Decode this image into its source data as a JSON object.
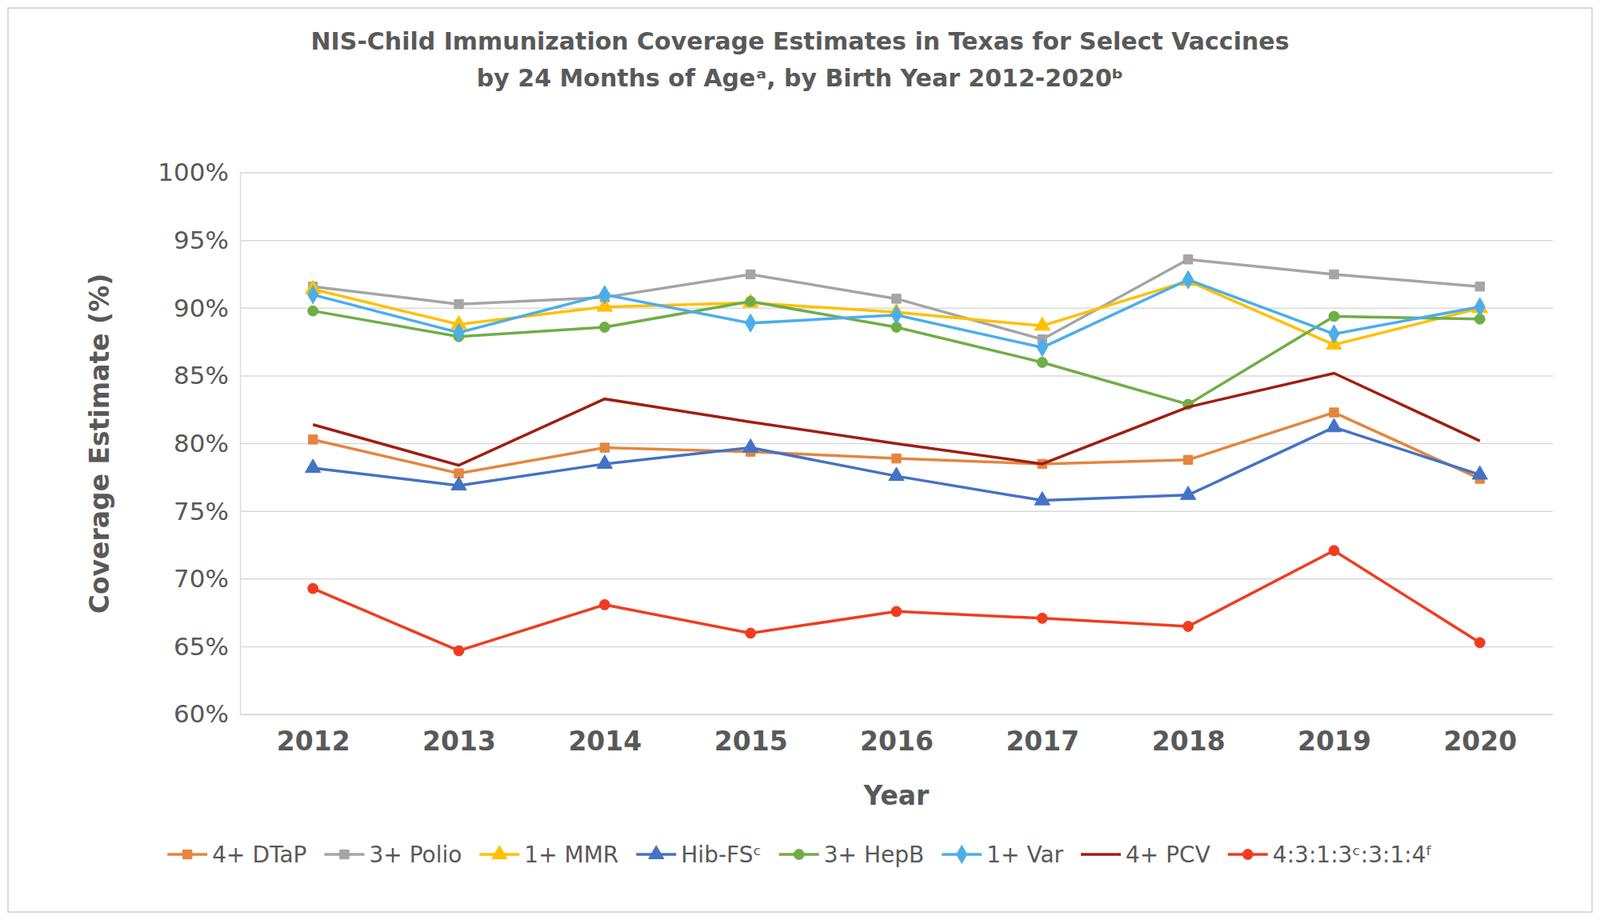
{
  "chart_data": {
    "type": "line",
    "title": [
      "NIS-Child Immunization Coverage Estimates in Texas for Select Vaccines",
      "by 24 Months of Ageᵃ, by Birth Year 2012-2020ᵇ"
    ],
    "x_label": "Year",
    "y_label": "Coverage Estimate (%)",
    "categories": [
      "2012",
      "2013",
      "2014",
      "2015",
      "2016",
      "2017",
      "2018",
      "2019",
      "2020"
    ],
    "series": [
      {
        "name": "4+ DTaP",
        "color": "#E4863E",
        "marker": "square",
        "values": [
          80.3,
          77.8,
          79.7,
          79.4,
          78.9,
          78.5,
          78.8,
          82.3,
          77.4
        ]
      },
      {
        "name": "3+ Polio",
        "color": "#A5A5A5",
        "marker": "square",
        "values": [
          91.6,
          90.3,
          90.8,
          92.5,
          90.7,
          87.7,
          93.6,
          92.5,
          91.6
        ]
      },
      {
        "name": "1+ MMR",
        "color": "#FFC000",
        "marker": "triangle",
        "values": [
          91.4,
          88.8,
          90.1,
          90.4,
          89.7,
          88.7,
          92.0,
          87.3,
          90.0
        ]
      },
      {
        "name": "Hib-FSᶜ",
        "color": "#4472C4",
        "marker": "triangle",
        "values": [
          78.2,
          76.9,
          78.5,
          79.7,
          77.6,
          75.8,
          76.2,
          81.2,
          77.7
        ]
      },
      {
        "name": "3+ HepB",
        "color": "#70AD47",
        "marker": "circle",
        "values": [
          89.8,
          87.9,
          88.6,
          90.5,
          88.6,
          86.0,
          82.9,
          89.4,
          89.2
        ]
      },
      {
        "name": "1+ Var",
        "color": "#4BAEEA",
        "marker": "diamond",
        "values": [
          91.0,
          88.2,
          91.0,
          88.9,
          89.5,
          87.1,
          92.1,
          88.1,
          90.1
        ]
      },
      {
        "name": "4+ PCV",
        "color": "#9E1F12",
        "marker": "none",
        "values": [
          81.4,
          78.4,
          83.3,
          81.6,
          80.0,
          78.5,
          82.7,
          85.2,
          80.2
        ]
      },
      {
        "name": "4:3:1:3ᶜ:3:1:4ᶠ",
        "color": "#F03C1E",
        "marker": "circle",
        "values": [
          69.3,
          64.7,
          68.1,
          66.0,
          67.6,
          67.1,
          66.5,
          72.1,
          65.3
        ]
      }
    ],
    "ylim": [
      60,
      100
    ],
    "yticks": [
      {
        "value": 60,
        "label": "60%"
      },
      {
        "value": 65,
        "label": "65%"
      },
      {
        "value": 70,
        "label": "70%"
      },
      {
        "value": 75,
        "label": "75%"
      },
      {
        "value": 80,
        "label": "80%"
      },
      {
        "value": 85,
        "label": "85%"
      },
      {
        "value": 90,
        "label": "90%"
      },
      {
        "value": 95,
        "label": "95%"
      },
      {
        "value": 100,
        "label": "100%"
      }
    ],
    "grid": true,
    "legend": "bottom"
  }
}
